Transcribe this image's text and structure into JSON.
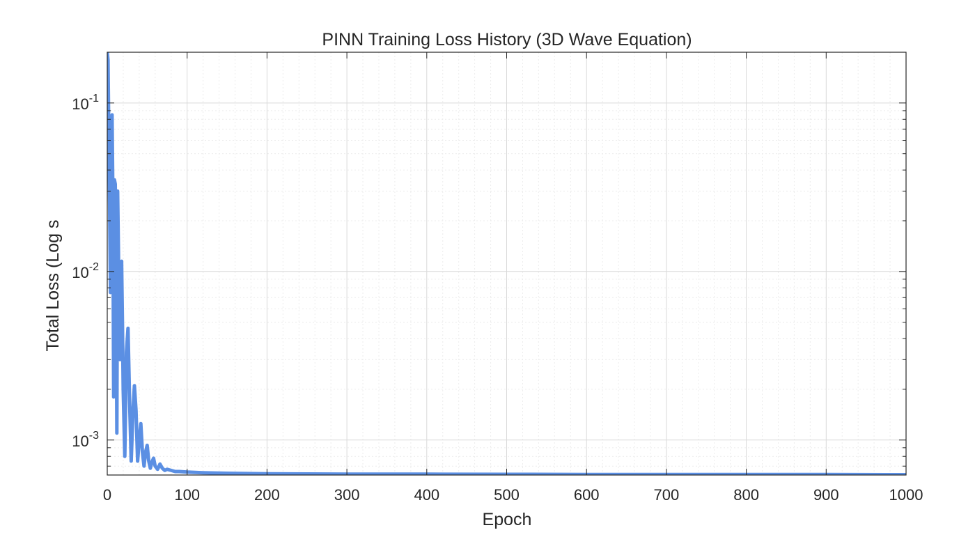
{
  "chart_data": {
    "type": "line",
    "title": "PINN Training Loss History (3D Wave Equation)",
    "xlabel": "Epoch",
    "ylabel": "Total Loss (Log s",
    "xlim": [
      0,
      1000
    ],
    "ylim": [
      0.00062,
      0.2
    ],
    "yscale": "log",
    "grid": true,
    "minor_grid": true,
    "legend": "none",
    "x_ticks": [
      0,
      100,
      200,
      300,
      400,
      500,
      600,
      700,
      800,
      900,
      1000
    ],
    "x_tick_labels": [
      "0",
      "100",
      "200",
      "300",
      "400",
      "500",
      "600",
      "700",
      "800",
      "900",
      "1000"
    ],
    "y_ticks": [
      0.001,
      0.01,
      0.1
    ],
    "y_tick_labels": [
      {
        "base": "10",
        "exp": "-3"
      },
      {
        "base": "10",
        "exp": "-2"
      },
      {
        "base": "10",
        "exp": "-1"
      }
    ],
    "series": [
      {
        "color": "#5b8fe3",
        "x": [
          0,
          1,
          2,
          3,
          4,
          5,
          6,
          7,
          8,
          9,
          10,
          11,
          12,
          13,
          14,
          15,
          16,
          17,
          18,
          19,
          20,
          22,
          24,
          26,
          28,
          30,
          32,
          34,
          36,
          38,
          40,
          42,
          44,
          46,
          48,
          50,
          52,
          54,
          56,
          58,
          60,
          63,
          66,
          69,
          72,
          75,
          80,
          85,
          90,
          100,
          120,
          150,
          200,
          300,
          400,
          500,
          600,
          700,
          800,
          900,
          1000
        ],
        "y": [
          0.2,
          0.18,
          0.06,
          0.025,
          0.0075,
          0.08,
          0.085,
          0.03,
          0.0018,
          0.035,
          0.033,
          0.012,
          0.0011,
          0.03,
          0.013,
          0.004,
          0.003,
          0.011,
          0.0115,
          0.005,
          0.002,
          0.0008,
          0.0033,
          0.0046,
          0.0017,
          0.00075,
          0.0014,
          0.0021,
          0.0015,
          0.00075,
          0.001,
          0.00125,
          0.00085,
          0.0007,
          0.00085,
          0.00093,
          0.00075,
          0.00068,
          0.00074,
          0.00078,
          0.0007,
          0.00067,
          0.00072,
          0.00068,
          0.00066,
          0.00067,
          0.00066,
          0.00065,
          0.00065,
          0.000645,
          0.00064,
          0.000635,
          0.00063,
          0.000628,
          0.000627,
          0.000626,
          0.000625,
          0.000625,
          0.000624,
          0.000624,
          0.000623
        ]
      }
    ]
  }
}
